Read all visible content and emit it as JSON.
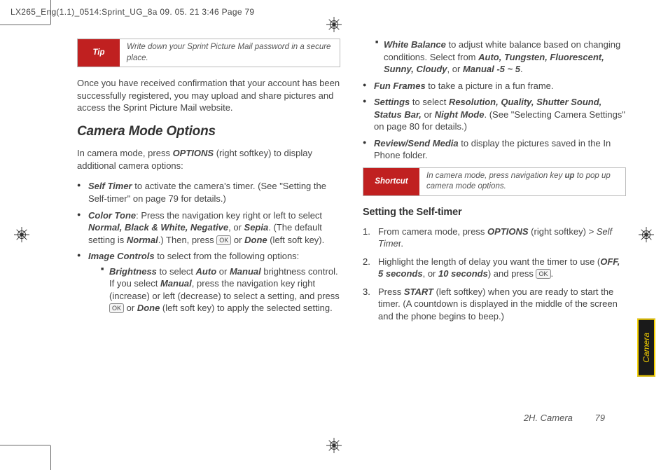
{
  "header": "LX265_Eng(1.1)_0514:Sprint_UG_8a  09. 05. 21    3:46  Page 79",
  "tip": {
    "label": "Tip",
    "text": "Write down your Sprint Picture Mail password in a secure place."
  },
  "intro": "Once you have received confirmation that your account has been successfully registered, you may upload and share pictures and access the Sprint Picture Mail website.",
  "h1": "Camera Mode Options",
  "lead": "In camera mode, press <span class=\"bi\">OPTIONS</span> (right softkey) to display additional camera options:",
  "b1": "<span class=\"bi\">Self Timer</span> to activate the camera's timer. (See \"Setting the Self-timer\" on page 79 for details.)",
  "b2": "<span class=\"bi\">Color Tone</span>: Press the navigation key right or left to select <span class=\"bi\">Normal, Black & White, Negative</span>, or <span class=\"bi\">Sepia</span>. (The default setting is <span class=\"bi\">Normal</span>.) Then, press <span class=\"key\">OK</span> or <span class=\"bi\">Done</span> (left soft key).",
  "b3": "<span class=\"bi\">Image Controls</span> to select from the following options:",
  "b3a": "<span class=\"bi\">Brightness</span> to select <span class=\"bi\">Auto</span> or <span class=\"bi\">Manual</span> brightness control. If you select <span class=\"bi\">Manual</span>, press the navigation key right (increase) or left (decrease) to select a setting, and press <span class=\"key\">OK</span> or <span class=\"bi\">Done</span> (left soft key) to apply the selected setting.",
  "b3b": "<span class=\"bi\">White Balance</span> to adjust white balance based on changing conditions. Select from <span class=\"bi\">Auto, Tungsten, Fluorescent, Sunny, Cloudy</span>, or <span class=\"bi\">Manual -5 ~ 5</span>.",
  "b4": "<span class=\"bi\">Fun Frames</span> to take a picture in a fun frame.",
  "b5": "<span class=\"bi\">Settings</span> to select <span class=\"bi\">Resolution, Quality, Shutter Sound, Status Bar,</span> or <span class=\"bi\">Night Mode</span>. (See \"Selecting Camera Settings\" on page 80 for details.)",
  "b6": "<span class=\"bi\">Review/Send Media</span> to display the pictures saved in the In Phone folder.",
  "shortcut": {
    "label": "Shortcut",
    "text": "In camera mode, press navigation key <b>up</b> to pop up camera mode options."
  },
  "h2": "Setting the Self-timer",
  "s1": "From camera mode, press <span class=\"bi\">OPTIONS</span> (right softkey) <span class=\"it\">&gt; Self Time</span>r.",
  "s2": "Highlight the length of delay you want the timer to use (<span class=\"bi\">OFF, 5 seconds</span>, or <span class=\"bi\">10 seconds</span>) and press <span class=\"key\">OK</span>.",
  "s3": "Press <span class=\"bi\">START</span> (left softkey) when you are ready to start the timer. (A countdown is displayed in the middle of the screen and the phone begins to beep.)",
  "sideTab": "Camera",
  "footer": {
    "section": "2H. Camera",
    "page": "79"
  }
}
